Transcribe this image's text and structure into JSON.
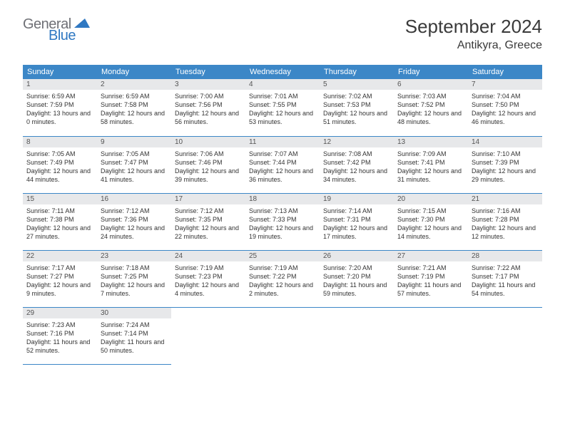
{
  "logo": {
    "general": "General",
    "blue": "Blue",
    "icon_color": "#2f78c2",
    "general_color": "#6f7076"
  },
  "title": "September 2024",
  "location": "Antikyra, Greece",
  "colors": {
    "header_bg": "#3c87c7",
    "header_text": "#ffffff",
    "daynum_bg": "#e7e8ea",
    "text": "#333333",
    "border": "#3c87c7"
  },
  "dayHeaders": [
    "Sunday",
    "Monday",
    "Tuesday",
    "Wednesday",
    "Thursday",
    "Friday",
    "Saturday"
  ],
  "weeks": [
    [
      {
        "n": 1,
        "sr": "6:59 AM",
        "ss": "7:59 PM",
        "dl": "13 hours and 0 minutes."
      },
      {
        "n": 2,
        "sr": "6:59 AM",
        "ss": "7:58 PM",
        "dl": "12 hours and 58 minutes."
      },
      {
        "n": 3,
        "sr": "7:00 AM",
        "ss": "7:56 PM",
        "dl": "12 hours and 56 minutes."
      },
      {
        "n": 4,
        "sr": "7:01 AM",
        "ss": "7:55 PM",
        "dl": "12 hours and 53 minutes."
      },
      {
        "n": 5,
        "sr": "7:02 AM",
        "ss": "7:53 PM",
        "dl": "12 hours and 51 minutes."
      },
      {
        "n": 6,
        "sr": "7:03 AM",
        "ss": "7:52 PM",
        "dl": "12 hours and 48 minutes."
      },
      {
        "n": 7,
        "sr": "7:04 AM",
        "ss": "7:50 PM",
        "dl": "12 hours and 46 minutes."
      }
    ],
    [
      {
        "n": 8,
        "sr": "7:05 AM",
        "ss": "7:49 PM",
        "dl": "12 hours and 44 minutes."
      },
      {
        "n": 9,
        "sr": "7:05 AM",
        "ss": "7:47 PM",
        "dl": "12 hours and 41 minutes."
      },
      {
        "n": 10,
        "sr": "7:06 AM",
        "ss": "7:46 PM",
        "dl": "12 hours and 39 minutes."
      },
      {
        "n": 11,
        "sr": "7:07 AM",
        "ss": "7:44 PM",
        "dl": "12 hours and 36 minutes."
      },
      {
        "n": 12,
        "sr": "7:08 AM",
        "ss": "7:42 PM",
        "dl": "12 hours and 34 minutes."
      },
      {
        "n": 13,
        "sr": "7:09 AM",
        "ss": "7:41 PM",
        "dl": "12 hours and 31 minutes."
      },
      {
        "n": 14,
        "sr": "7:10 AM",
        "ss": "7:39 PM",
        "dl": "12 hours and 29 minutes."
      }
    ],
    [
      {
        "n": 15,
        "sr": "7:11 AM",
        "ss": "7:38 PM",
        "dl": "12 hours and 27 minutes."
      },
      {
        "n": 16,
        "sr": "7:12 AM",
        "ss": "7:36 PM",
        "dl": "12 hours and 24 minutes."
      },
      {
        "n": 17,
        "sr": "7:12 AM",
        "ss": "7:35 PM",
        "dl": "12 hours and 22 minutes."
      },
      {
        "n": 18,
        "sr": "7:13 AM",
        "ss": "7:33 PM",
        "dl": "12 hours and 19 minutes."
      },
      {
        "n": 19,
        "sr": "7:14 AM",
        "ss": "7:31 PM",
        "dl": "12 hours and 17 minutes."
      },
      {
        "n": 20,
        "sr": "7:15 AM",
        "ss": "7:30 PM",
        "dl": "12 hours and 14 minutes."
      },
      {
        "n": 21,
        "sr": "7:16 AM",
        "ss": "7:28 PM",
        "dl": "12 hours and 12 minutes."
      }
    ],
    [
      {
        "n": 22,
        "sr": "7:17 AM",
        "ss": "7:27 PM",
        "dl": "12 hours and 9 minutes."
      },
      {
        "n": 23,
        "sr": "7:18 AM",
        "ss": "7:25 PM",
        "dl": "12 hours and 7 minutes."
      },
      {
        "n": 24,
        "sr": "7:19 AM",
        "ss": "7:23 PM",
        "dl": "12 hours and 4 minutes."
      },
      {
        "n": 25,
        "sr": "7:19 AM",
        "ss": "7:22 PM",
        "dl": "12 hours and 2 minutes."
      },
      {
        "n": 26,
        "sr": "7:20 AM",
        "ss": "7:20 PM",
        "dl": "11 hours and 59 minutes."
      },
      {
        "n": 27,
        "sr": "7:21 AM",
        "ss": "7:19 PM",
        "dl": "11 hours and 57 minutes."
      },
      {
        "n": 28,
        "sr": "7:22 AM",
        "ss": "7:17 PM",
        "dl": "11 hours and 54 minutes."
      }
    ],
    [
      {
        "n": 29,
        "sr": "7:23 AM",
        "ss": "7:16 PM",
        "dl": "11 hours and 52 minutes."
      },
      {
        "n": 30,
        "sr": "7:24 AM",
        "ss": "7:14 PM",
        "dl": "11 hours and 50 minutes."
      },
      null,
      null,
      null,
      null,
      null
    ]
  ],
  "labels": {
    "sunrise": "Sunrise:",
    "sunset": "Sunset:",
    "daylight": "Daylight:"
  }
}
